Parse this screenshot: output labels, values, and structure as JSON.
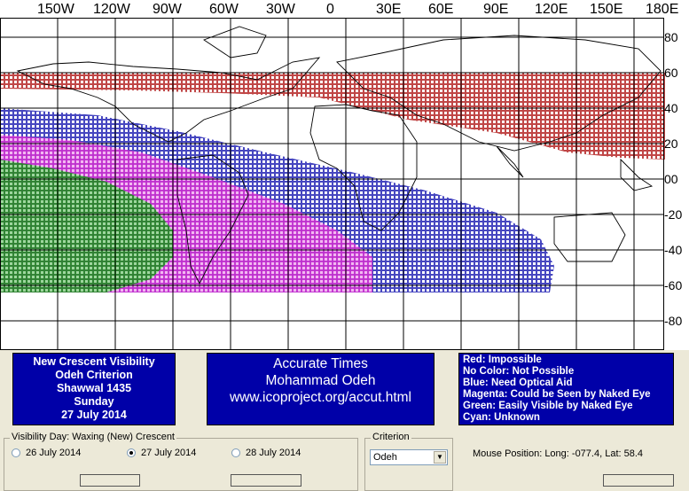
{
  "map": {
    "top_labels": [
      "150W",
      "120W",
      "90W",
      "60W",
      "30W",
      "0",
      "30E",
      "60E",
      "90E",
      "120E",
      "150E",
      "180E"
    ],
    "right_labels": [
      "80",
      "60",
      "40",
      "20",
      "00",
      "-20",
      "-40",
      "-60",
      "-80"
    ],
    "zones": {
      "red": "#b01818",
      "blue": "#1818b0",
      "magenta": "#d028d0",
      "green": "#138a13"
    }
  },
  "info_left": [
    "New Crescent Visibility",
    "Odeh Criterion",
    "Shawwal 1435",
    "Sunday",
    "27 July 2014"
  ],
  "info_mid": [
    "Accurate Times",
    "Mohammad Odeh",
    "www.icoproject.org/accut.html"
  ],
  "legend": [
    "Red: Impossible",
    "No Color: Not Possible",
    "Blue: Need Optical Aid",
    "Magenta: Could be Seen by Naked Eye",
    "Green: Easily Visible by Naked Eye",
    "Cyan: Unknown"
  ],
  "visibility_day": {
    "title": "Visibility Day: Waxing (New) Crescent",
    "options": [
      "26 July 2014",
      "27 July 2014",
      "28 July 2014"
    ],
    "selected": "27 July 2014"
  },
  "criterion": {
    "title": "Criterion",
    "value": "Odeh"
  },
  "mouse_position": "Mouse Position: Long: -077.4, Lat: 58.4"
}
